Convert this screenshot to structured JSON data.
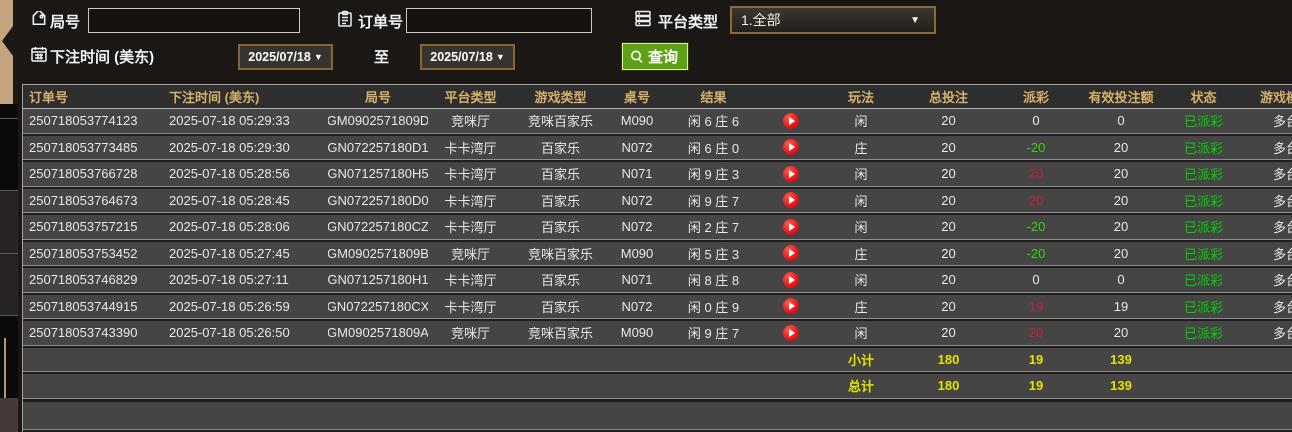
{
  "filters": {
    "round_label": "局号",
    "round_value": "",
    "order_label": "订单号",
    "order_value": "",
    "platform_label": "平台类型",
    "platform_value": "1.全部",
    "bet_time_label": "下注时间 (美东)",
    "date_from": "2025/07/18",
    "to_label": "至",
    "date_to": "2025/07/18",
    "search_label": "查询"
  },
  "table": {
    "headers": [
      "订单号",
      "下注时间 (美东)",
      "局号",
      "平台类型",
      "游戏类型",
      "桌号",
      "结果",
      "",
      "玩法",
      "总投注",
      "派彩",
      "有效投注额",
      "状态",
      "游戏模式"
    ],
    "rows": [
      {
        "order_no": "250718053774123",
        "bet_time": "2025-07-18 05:29:33",
        "round_no": "GM0902571809D",
        "platform": "竞咪厅",
        "game_type": "竞咪百家乐",
        "table_no": "M090",
        "result": "闲 6 庄 6",
        "play_type": "闲",
        "total_bet": "20",
        "payout": "0",
        "payout_color": "zero",
        "valid_bet": "0",
        "status": "已派彩",
        "mode": "多台"
      },
      {
        "order_no": "250718053773485",
        "bet_time": "2025-07-18 05:29:30",
        "round_no": "GN072257180D1",
        "platform": "卡卡湾厅",
        "game_type": "百家乐",
        "table_no": "N072",
        "result": "闲 6 庄 0",
        "play_type": "庄",
        "total_bet": "20",
        "payout": "-20",
        "payout_color": "neg",
        "valid_bet": "20",
        "status": "已派彩",
        "mode": "多台"
      },
      {
        "order_no": "250718053766728",
        "bet_time": "2025-07-18 05:28:56",
        "round_no": "GN071257180H5",
        "platform": "卡卡湾厅",
        "game_type": "百家乐",
        "table_no": "N071",
        "result": "闲 9 庄 3",
        "play_type": "闲",
        "total_bet": "20",
        "payout": "20",
        "payout_color": "pos",
        "valid_bet": "20",
        "status": "已派彩",
        "mode": "多台"
      },
      {
        "order_no": "250718053764673",
        "bet_time": "2025-07-18 05:28:45",
        "round_no": "GN072257180D0",
        "platform": "卡卡湾厅",
        "game_type": "百家乐",
        "table_no": "N072",
        "result": "闲 9 庄 7",
        "play_type": "闲",
        "total_bet": "20",
        "payout": "20",
        "payout_color": "pos",
        "valid_bet": "20",
        "status": "已派彩",
        "mode": "多台"
      },
      {
        "order_no": "250718053757215",
        "bet_time": "2025-07-18 05:28:06",
        "round_no": "GN072257180CZ",
        "platform": "卡卡湾厅",
        "game_type": "百家乐",
        "table_no": "N072",
        "result": "闲 2 庄 7",
        "play_type": "闲",
        "total_bet": "20",
        "payout": "-20",
        "payout_color": "neg",
        "valid_bet": "20",
        "status": "已派彩",
        "mode": "多台"
      },
      {
        "order_no": "250718053753452",
        "bet_time": "2025-07-18 05:27:45",
        "round_no": "GM0902571809B",
        "platform": "竞咪厅",
        "game_type": "竞咪百家乐",
        "table_no": "M090",
        "result": "闲 5 庄 3",
        "play_type": "庄",
        "total_bet": "20",
        "payout": "-20",
        "payout_color": "neg",
        "valid_bet": "20",
        "status": "已派彩",
        "mode": "多台"
      },
      {
        "order_no": "250718053746829",
        "bet_time": "2025-07-18 05:27:11",
        "round_no": "GN071257180H1",
        "platform": "卡卡湾厅",
        "game_type": "百家乐",
        "table_no": "N071",
        "result": "闲 8 庄 8",
        "play_type": "闲",
        "total_bet": "20",
        "payout": "0",
        "payout_color": "zero",
        "valid_bet": "0",
        "status": "已派彩",
        "mode": "多台"
      },
      {
        "order_no": "250718053744915",
        "bet_time": "2025-07-18 05:26:59",
        "round_no": "GN072257180CX",
        "platform": "卡卡湾厅",
        "game_type": "百家乐",
        "table_no": "N072",
        "result": "闲 0 庄 9",
        "play_type": "庄",
        "total_bet": "20",
        "payout": "19",
        "payout_color": "pos",
        "valid_bet": "19",
        "status": "已派彩",
        "mode": "多台"
      },
      {
        "order_no": "250718053743390",
        "bet_time": "2025-07-18 05:26:50",
        "round_no": "GM0902571809A",
        "platform": "竞咪厅",
        "game_type": "竞咪百家乐",
        "table_no": "M090",
        "result": "闲 9 庄 7",
        "play_type": "闲",
        "total_bet": "20",
        "payout": "20",
        "payout_color": "pos",
        "valid_bet": "20",
        "status": "已派彩",
        "mode": "多台"
      }
    ],
    "subtotal": {
      "label": "小计",
      "total_bet": "180",
      "payout": "19",
      "valid_bet": "139"
    },
    "grand_total": {
      "label": "总计",
      "total_bet": "180",
      "payout": "19",
      "valid_bet": "139"
    }
  },
  "colors": {
    "header_gold": "#d6b06a",
    "status_green": "#00d300",
    "payout_negative_green": "#35d60a",
    "payout_positive_red": "#c7203d",
    "summary_yellow": "#e6e300",
    "search_button_green": "#5ea114",
    "accent_border_tan": "#8a6534",
    "row_gray": "#454545",
    "page_background": "#1a1714"
  }
}
